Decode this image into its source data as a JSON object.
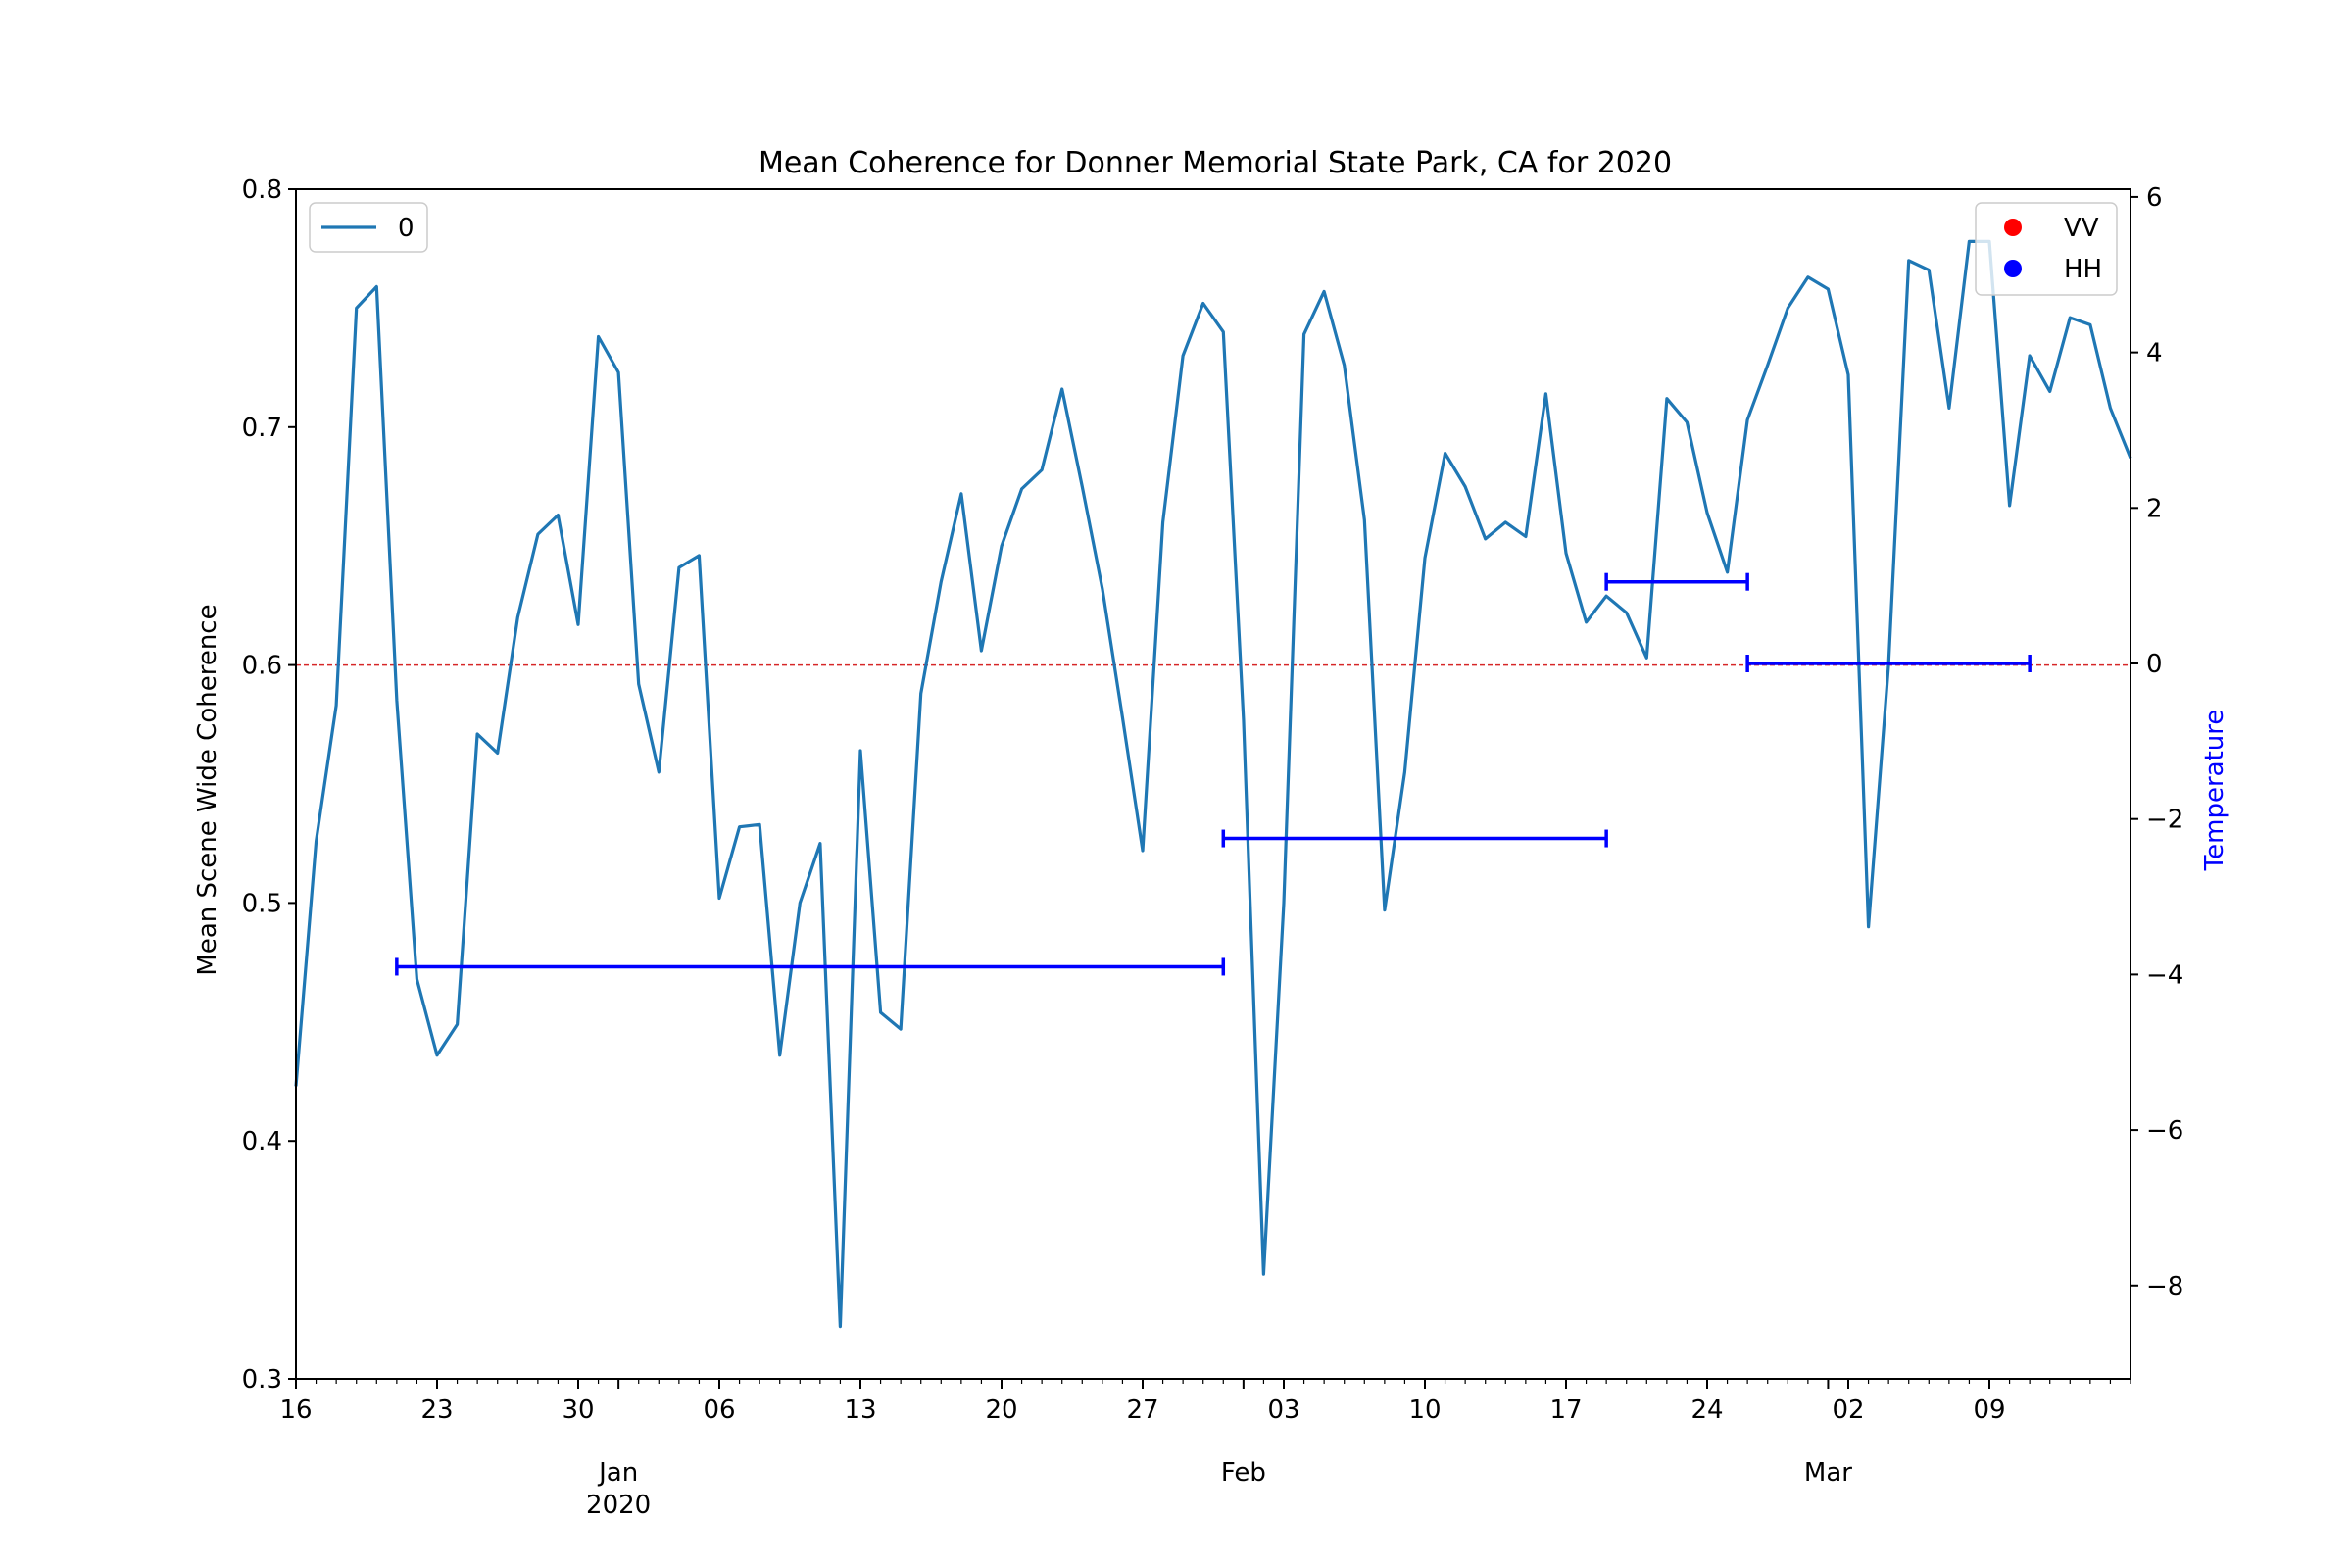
{
  "chart_data": {
    "type": "line",
    "title": "Mean Coherence for Donner Memorial State Park, CA for 2020",
    "ylabel": "Mean Scene Wide Coherence",
    "y2label": "Temperature",
    "xlim": [
      "2019-12-16",
      "2020-03-16"
    ],
    "ylim": [
      0.3,
      0.8
    ],
    "y2lim": [
      -9.2,
      6.1
    ],
    "yticks": [
      0.3,
      0.4,
      0.5,
      0.6,
      0.7,
      0.8
    ],
    "y2ticks": [
      -8,
      -6,
      -4,
      -2,
      0,
      2,
      4,
      6
    ],
    "xtick_labels": [
      "16",
      "23",
      "30",
      "06",
      "13",
      "20",
      "27",
      "03",
      "10",
      "17",
      "24",
      "02",
      "09"
    ],
    "xtick_dates": [
      "2019-12-16",
      "2019-12-23",
      "2019-12-30",
      "2020-01-06",
      "2020-01-13",
      "2020-01-20",
      "2020-01-27",
      "2020-02-03",
      "2020-02-10",
      "2020-02-17",
      "2020-02-24",
      "2020-03-02",
      "2020-03-09"
    ],
    "month_labels": [
      {
        "label": "Jan",
        "sub": "2020",
        "date": "2020-01-01"
      },
      {
        "label": "Feb",
        "sub": "",
        "date": "2020-02-01"
      },
      {
        "label": "Mar",
        "sub": "",
        "date": "2020-03-01"
      }
    ],
    "reference_line": {
      "y": 0.6,
      "color": "#d62728"
    },
    "series": [
      {
        "name": "0",
        "color": "#1f77b4",
        "x": [
          "2019-12-16",
          "2019-12-17",
          "2019-12-18",
          "2019-12-19",
          "2019-12-20",
          "2019-12-21",
          "2019-12-22",
          "2019-12-23",
          "2019-12-24",
          "2019-12-25",
          "2019-12-26",
          "2019-12-27",
          "2019-12-28",
          "2019-12-29",
          "2019-12-30",
          "2019-12-31",
          "2020-01-01",
          "2020-01-02",
          "2020-01-03",
          "2020-01-04",
          "2020-01-05",
          "2020-01-06",
          "2020-01-07",
          "2020-01-08",
          "2020-01-09",
          "2020-01-10",
          "2020-01-11",
          "2020-01-12",
          "2020-01-13",
          "2020-01-14",
          "2020-01-15",
          "2020-01-16",
          "2020-01-17",
          "2020-01-18",
          "2020-01-19",
          "2020-01-20",
          "2020-01-21",
          "2020-01-22",
          "2020-01-23",
          "2020-01-24",
          "2020-01-25",
          "2020-01-26",
          "2020-01-27",
          "2020-01-28",
          "2020-01-29",
          "2020-01-30",
          "2020-01-31",
          "2020-02-01",
          "2020-02-02",
          "2020-02-03",
          "2020-02-04",
          "2020-02-05",
          "2020-02-06",
          "2020-02-07",
          "2020-02-08",
          "2020-02-09",
          "2020-02-10",
          "2020-02-11",
          "2020-02-12",
          "2020-02-13",
          "2020-02-14",
          "2020-02-15",
          "2020-02-16",
          "2020-02-17",
          "2020-02-18",
          "2020-02-19",
          "2020-02-20",
          "2020-02-21",
          "2020-02-22",
          "2020-02-23",
          "2020-02-24",
          "2020-02-25",
          "2020-02-26",
          "2020-02-27",
          "2020-02-28",
          "2020-02-29",
          "2020-03-01",
          "2020-03-02",
          "2020-03-03",
          "2020-03-04",
          "2020-03-05",
          "2020-03-06",
          "2020-03-07",
          "2020-03-08",
          "2020-03-09",
          "2020-03-10",
          "2020-03-11",
          "2020-03-12",
          "2020-03-13",
          "2020-03-14",
          "2020-03-15",
          "2020-03-16"
        ],
        "values": [
          0.423,
          0.526,
          0.583,
          0.75,
          0.759,
          0.585,
          0.468,
          0.436,
          0.449,
          0.571,
          0.563,
          0.62,
          0.655,
          0.663,
          0.617,
          0.738,
          0.723,
          0.592,
          0.555,
          0.641,
          0.646,
          0.502,
          0.532,
          0.533,
          0.436,
          0.5,
          0.525,
          0.322,
          0.564,
          0.454,
          0.447,
          0.588,
          0.635,
          0.672,
          0.606,
          0.65,
          0.674,
          0.682,
          0.716,
          0.675,
          0.632,
          0.578,
          0.522,
          0.66,
          0.73,
          0.752,
          0.74,
          0.577,
          0.344,
          0.5,
          0.739,
          0.757,
          0.726,
          0.661,
          0.497,
          0.555,
          0.645,
          0.689,
          0.675,
          0.653,
          0.66,
          0.654,
          0.714,
          0.647,
          0.618,
          0.629,
          0.622,
          0.603,
          0.712,
          0.702,
          0.664,
          0.639,
          0.703,
          0.726,
          0.75,
          0.763,
          0.758,
          0.722,
          0.49,
          0.6,
          0.77,
          0.766,
          0.708,
          0.778,
          0.778,
          0.667,
          0.73,
          0.715,
          0.746,
          0.743,
          0.708,
          0.687
        ]
      }
    ],
    "temperature_bars": [
      {
        "start": "2019-12-21",
        "end": "2020-01-31",
        "value": -3.9
      },
      {
        "start": "2020-01-31",
        "end": "2020-02-19",
        "value": -2.25
      },
      {
        "start": "2020-02-19",
        "end": "2020-02-26",
        "value": 1.05
      },
      {
        "start": "2020-02-26",
        "end": "2020-03-11",
        "value": 0.0
      }
    ],
    "temperature_color": "#0000ff",
    "legend_left": {
      "placement": "upper-left",
      "entries": [
        {
          "label": "0",
          "color": "#1f77b4",
          "marker": "line"
        }
      ]
    },
    "legend_right": {
      "placement": "upper-right",
      "entries": [
        {
          "label": "VV",
          "color": "#ff0000",
          "marker": "dot"
        },
        {
          "label": "HH",
          "color": "#0000ff",
          "marker": "dot"
        }
      ]
    }
  }
}
